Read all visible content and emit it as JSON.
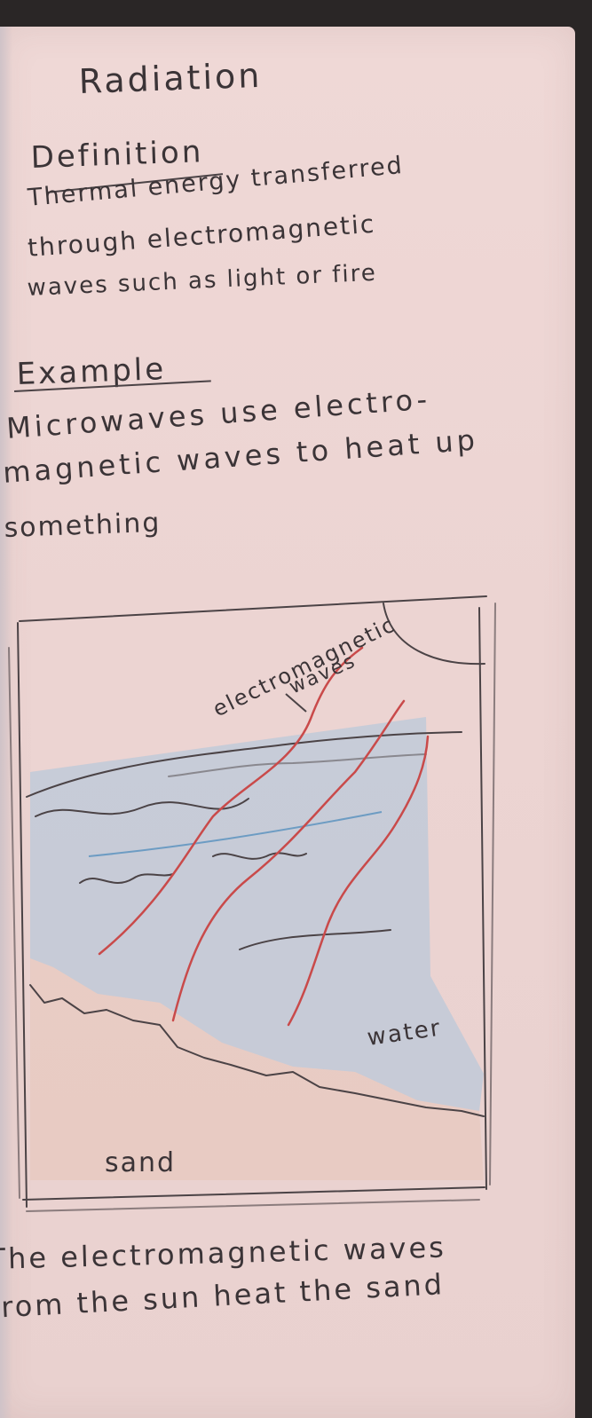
{
  "notes": {
    "title": "Radiation",
    "definition": {
      "heading": "Definition",
      "lines": [
        "Thermal energy transferred",
        "through electromagnetic",
        "waves such as light or fire"
      ]
    },
    "example": {
      "heading": "Example",
      "lines": [
        "Microwaves use electro-",
        "magnetic waves to heat up",
        "something"
      ]
    },
    "drawing": {
      "label_waves_1": "electromagnetic",
      "label_waves_2": "waves",
      "label_water": "water",
      "label_sand": "sand",
      "colors": {
        "pencil": "#4b4346",
        "wave_red": "#c94a4a",
        "water_blue": "#a9c4dc",
        "sand_peach": "#e7c3b4"
      }
    },
    "caption": [
      "The electromagnetic waves",
      "from the sun heat the sand"
    ]
  }
}
